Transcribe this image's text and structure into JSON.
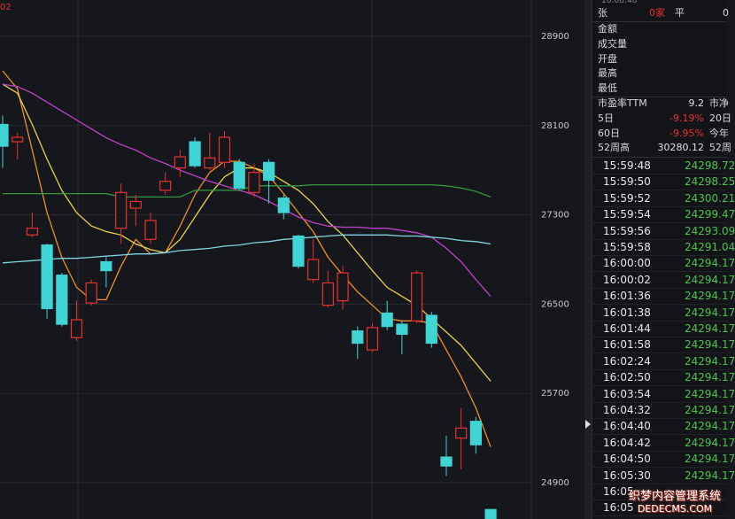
{
  "chart_data": {
    "type": "candlestick",
    "corner_label": "02",
    "ylim": [
      24575,
      29225
    ],
    "yticks": [
      28900,
      28100,
      27300,
      26500,
      25700,
      24900
    ],
    "grid": true,
    "up_color": "#e8322f",
    "down_color": "#3fd4d6",
    "open": [
      28110,
      27955,
      27120,
      27030,
      26760,
      26200,
      26510,
      26880,
      27180,
      27360,
      27080,
      27520,
      27720,
      27955,
      27720,
      27770,
      27770,
      27500,
      27770,
      27450,
      27110,
      26720,
      26490,
      26530,
      26260,
      26090,
      26420,
      26320,
      26350,
      26400,
      25130,
      25300,
      25450,
      24660
    ],
    "high": [
      28190,
      28035,
      27320,
      27040,
      26780,
      26530,
      26720,
      26920,
      27580,
      27480,
      27320,
      27680,
      27880,
      27995,
      28035,
      28050,
      27800,
      27760,
      27800,
      27480,
      27120,
      27080,
      26800,
      26840,
      26300,
      26330,
      26530,
      26350,
      26800,
      26430,
      25320,
      25570,
      25490,
      24660
    ],
    "low": [
      27720,
      27800,
      27100,
      26370,
      26300,
      26170,
      26490,
      26650,
      27040,
      27200,
      27040,
      27480,
      27640,
      27720,
      27700,
      27720,
      27520,
      27460,
      27400,
      27260,
      26820,
      26690,
      26470,
      26450,
      26010,
      26070,
      26270,
      26050,
      26330,
      26110,
      24960,
      25020,
      25160,
      24575
    ],
    "close": [
      27915,
      27995,
      27180,
      26460,
      26320,
      26360,
      26690,
      26800,
      27500,
      27420,
      27250,
      27600,
      27820,
      27740,
      27810,
      27995,
      27540,
      27680,
      27610,
      27320,
      26840,
      26900,
      26690,
      26780,
      26150,
      26290,
      26300,
      26230,
      26780,
      26150,
      25050,
      25390,
      25240,
      24580
    ],
    "series": [
      {
        "color": "#f0902a",
        "values": [
          28590,
          28430,
          27880,
          27320,
          26920,
          26650,
          26540,
          26540,
          26840,
          27080,
          26950,
          26960,
          27200,
          27480,
          27680,
          27780,
          27780,
          27720,
          27650,
          27490,
          27320,
          27150,
          26920,
          26760,
          26610,
          26490,
          26370,
          26350,
          26350,
          26330,
          26090,
          25850,
          25570,
          25220
        ]
      },
      {
        "color": "#e8d24a",
        "values": [
          28470,
          28390,
          28110,
          27800,
          27520,
          27320,
          27200,
          27150,
          27120,
          27040,
          26990,
          26960,
          27080,
          27280,
          27480,
          27640,
          27720,
          27720,
          27680,
          27600,
          27520,
          27400,
          27240,
          27120,
          26960,
          26800,
          26650,
          26570,
          26490,
          26370,
          26250,
          26130,
          25970,
          25810
        ]
      },
      {
        "color": "#c43fd0",
        "values": [
          28470,
          28450,
          28390,
          28310,
          28230,
          28150,
          28070,
          27990,
          27930,
          27880,
          27810,
          27760,
          27700,
          27650,
          27600,
          27560,
          27520,
          27480,
          27420,
          27350,
          27280,
          27230,
          27200,
          27190,
          27190,
          27180,
          27180,
          27160,
          27140,
          27100,
          27000,
          26880,
          26720,
          26570
        ]
      },
      {
        "color": "#2f9a3a",
        "values": [
          27490,
          27490,
          27490,
          27490,
          27490,
          27490,
          27490,
          27490,
          27460,
          27460,
          27460,
          27460,
          27460,
          27520,
          27520,
          27520,
          27520,
          27560,
          27560,
          27560,
          27560,
          27570,
          27570,
          27570,
          27570,
          27570,
          27570,
          27570,
          27570,
          27570,
          27560,
          27540,
          27510,
          27460
        ]
      },
      {
        "color": "#7fd6e6",
        "values": [
          26870,
          26880,
          26890,
          26900,
          26910,
          26910,
          26920,
          26930,
          26940,
          26950,
          26950,
          26960,
          26980,
          26990,
          27000,
          27020,
          27030,
          27050,
          27060,
          27080,
          27090,
          27100,
          27110,
          27120,
          27120,
          27120,
          27120,
          27110,
          27110,
          27100,
          27090,
          27070,
          27060,
          27040
        ]
      }
    ]
  },
  "panel": {
    "time": "16:08:48",
    "header": [
      "张",
      "0家",
      "平",
      "0"
    ],
    "fields": [
      "金额",
      "成交量",
      "开盘",
      "最高",
      "最低"
    ],
    "stats": [
      [
        "市盈率TTM",
        "9.2",
        "市净"
      ],
      [
        "5日",
        "-9.19%",
        "20日"
      ],
      [
        "60日",
        "-9.95%",
        "今年"
      ],
      [
        "52周高",
        "30280.12",
        "52周"
      ]
    ],
    "ticks": [
      {
        "time": "15:59:48",
        "price": "24298.72"
      },
      {
        "time": "15:59:50",
        "price": "24298.25"
      },
      {
        "time": "15:59:52",
        "price": "24300.21"
      },
      {
        "time": "15:59:54",
        "price": "24299.47"
      },
      {
        "time": "15:59:56",
        "price": "24293.09"
      },
      {
        "time": "15:59:58",
        "price": "24291.04"
      },
      {
        "time": "16:00:00",
        "price": "24294.17"
      },
      {
        "time": "16:00:02",
        "price": "24294.17"
      },
      {
        "time": "16:01:36",
        "price": "24294.17"
      },
      {
        "time": "16:01:38",
        "price": "24294.17"
      },
      {
        "time": "16:01:44",
        "price": "24294.17"
      },
      {
        "time": "16:01:58",
        "price": "24294.17"
      },
      {
        "time": "16:02:24",
        "price": "24294.17"
      },
      {
        "time": "16:02:50",
        "price": "24294.17"
      },
      {
        "time": "16:03:54",
        "price": "24294.17"
      },
      {
        "time": "16:04:32",
        "price": "24294.17"
      },
      {
        "time": "16:04:40",
        "price": "24294.17"
      },
      {
        "time": "16:04:42",
        "price": "24294.17"
      },
      {
        "time": "16:04:50",
        "price": "24294.17"
      },
      {
        "time": "16:05:30",
        "price": "24294.17"
      },
      {
        "time": "16:05"
      },
      {
        "time": "16:05"
      }
    ]
  },
  "watermark": [
    "织梦内容管理系统",
    "DEDECMS.COM"
  ]
}
